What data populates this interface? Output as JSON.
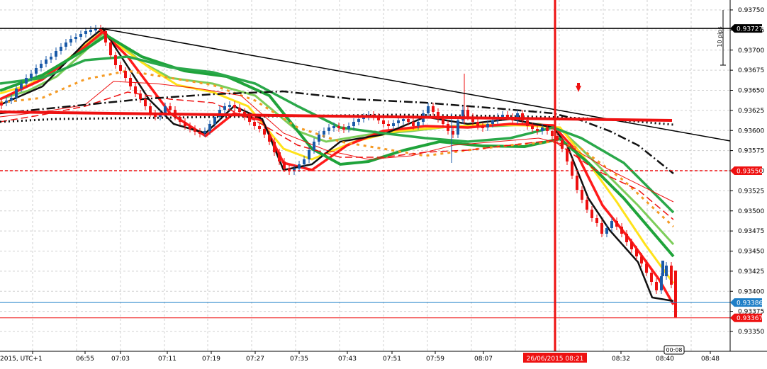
{
  "chart_data": {
    "type": "line",
    "symbol_note": "",
    "y_ticks": [
      "0.93750",
      "0.93725",
      "0.93700",
      "0.93675",
      "0.93650",
      "0.93625",
      "0.93600",
      "0.93575",
      "0.93550",
      "0.93525",
      "0.93500",
      "0.93475",
      "0.93450",
      "0.93425",
      "0.93400",
      "0.93375",
      "0.93350"
    ],
    "y_range": [
      0.93335,
      0.93755
    ],
    "x_labels": [
      "2015, UTC+1",
      "06:55",
      "07:03",
      "07:11",
      "07:19",
      "07:27",
      "07:35",
      "07:43",
      "07:51",
      "07:59",
      "08:07",
      "08:32",
      "08:40",
      "08:48"
    ],
    "cursor_date_label": "26/06/2015 08:21",
    "timer_label": "00:08",
    "pips_label": "10 pips",
    "price_tags": [
      {
        "value": 0.93727,
        "label": "0.93727",
        "style": "black-solid",
        "color": "#000000"
      },
      {
        "value": 0.9355,
        "label": "0.93550",
        "style": "red-dashed",
        "color": "#ee1111"
      },
      {
        "value": 0.93386,
        "label": "0.93386",
        "style": "blue-thin",
        "color": "#1f7fc7"
      },
      {
        "value": 0.93367,
        "label": "0.93367",
        "style": "red-thin",
        "color": "#ee1111"
      }
    ],
    "grid": true,
    "colors": {
      "up_candle": "#1a5aa8",
      "down_candle": "#ee1111",
      "cursor": "#ee1111"
    }
  }
}
